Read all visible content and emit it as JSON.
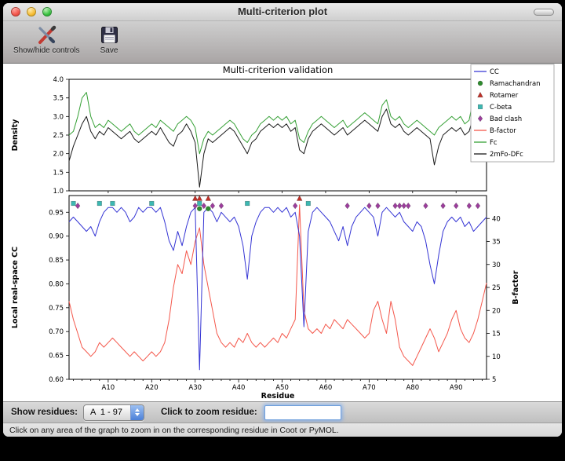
{
  "window": {
    "title": "Multi-criterion plot"
  },
  "toolbar": {
    "buttons": [
      {
        "label": "Show/hide controls"
      },
      {
        "label": "Save"
      }
    ]
  },
  "controls": {
    "show_residues_label": "Show residues:",
    "chain_range": "A  1 - 97",
    "zoom_label": "Click to zoom residue:",
    "zoom_value": ""
  },
  "statusbar": {
    "text": "Click on any area of the graph to zoom in on the corresponding residue in Coot or PyMOL."
  },
  "chart_data": {
    "type": "line",
    "title": "Multi-criterion validation",
    "x_label": "Residue",
    "residue_count": 97,
    "x_tick_residues": [
      10,
      20,
      30,
      40,
      50,
      60,
      70,
      80,
      90
    ],
    "x_tick_labels": [
      "A10",
      "A20",
      "A30",
      "A40",
      "A50",
      "A60",
      "A70",
      "A80",
      "A90"
    ],
    "top_plot": {
      "y_label": "Density",
      "ylim": [
        1.0,
        4.0
      ],
      "y_ticks": [
        1.0,
        1.5,
        2.0,
        2.5,
        3.0,
        3.5,
        4.0
      ],
      "series": [
        {
          "name": "2mFo-DFc",
          "color": "#1a1a1a",
          "values": [
            1.8,
            2.2,
            2.5,
            2.8,
            3.0,
            2.6,
            2.4,
            2.6,
            2.5,
            2.7,
            2.6,
            2.5,
            2.4,
            2.5,
            2.6,
            2.4,
            2.3,
            2.4,
            2.5,
            2.6,
            2.5,
            2.7,
            2.5,
            2.3,
            2.2,
            2.5,
            2.6,
            2.8,
            2.6,
            2.3,
            1.1,
            2.0,
            2.4,
            2.3,
            2.4,
            2.5,
            2.6,
            2.7,
            2.6,
            2.4,
            2.2,
            2.0,
            2.3,
            2.4,
            2.6,
            2.7,
            2.8,
            2.7,
            2.8,
            2.7,
            2.8,
            2.6,
            2.7,
            2.1,
            2.0,
            2.4,
            2.6,
            2.7,
            2.8,
            2.7,
            2.6,
            2.5,
            2.6,
            2.7,
            2.5,
            2.6,
            2.7,
            2.8,
            2.9,
            2.8,
            2.7,
            2.6,
            3.0,
            3.2,
            2.8,
            2.7,
            2.8,
            2.6,
            2.5,
            2.6,
            2.7,
            2.6,
            2.5,
            2.4,
            1.7,
            2.2,
            2.5,
            2.6,
            2.7,
            2.6,
            2.7,
            2.5,
            2.6,
            3.0,
            2.6,
            2.7,
            2.6
          ]
        },
        {
          "name": "Fc",
          "color": "#35a035",
          "values": [
            2.5,
            2.6,
            3.0,
            3.5,
            3.65,
            3.0,
            2.7,
            2.8,
            2.7,
            2.9,
            2.8,
            2.7,
            2.6,
            2.7,
            2.8,
            2.6,
            2.5,
            2.6,
            2.7,
            2.8,
            2.7,
            2.9,
            2.8,
            2.7,
            2.6,
            2.8,
            2.9,
            3.0,
            2.9,
            2.7,
            2.0,
            2.4,
            2.6,
            2.5,
            2.6,
            2.7,
            2.8,
            2.9,
            2.8,
            2.6,
            2.4,
            2.3,
            2.5,
            2.6,
            2.8,
            2.9,
            3.0,
            2.9,
            3.0,
            2.9,
            3.0,
            2.8,
            2.9,
            2.4,
            2.3,
            2.6,
            2.8,
            2.9,
            3.0,
            2.9,
            2.8,
            2.7,
            2.8,
            2.9,
            2.7,
            2.8,
            2.9,
            3.0,
            3.1,
            3.0,
            2.9,
            2.8,
            3.3,
            3.45,
            3.0,
            2.9,
            3.0,
            2.8,
            2.7,
            2.8,
            2.9,
            2.8,
            2.7,
            2.6,
            2.5,
            2.7,
            2.8,
            2.9,
            3.0,
            2.9,
            3.0,
            2.8,
            2.9,
            3.5,
            3.0,
            3.2,
            3.3
          ]
        }
      ]
    },
    "bottom_plot": {
      "y_label": "Local real-space CC",
      "ylim": [
        0.6,
        0.985
      ],
      "y_ticks": [
        0.6,
        0.65,
        0.7,
        0.75,
        0.8,
        0.85,
        0.9,
        0.95
      ],
      "y2_label": "B-factor",
      "y2lim": [
        5,
        45
      ],
      "y2_ticks": [
        5,
        10,
        15,
        20,
        25,
        30,
        35,
        40
      ],
      "series": [
        {
          "name": "B-factor",
          "axis": "right",
          "color": "#f4574b",
          "values": [
            22,
            18,
            15,
            12,
            11,
            10,
            11,
            13,
            12,
            13,
            14,
            13,
            12,
            11,
            10,
            11,
            10,
            9,
            10,
            11,
            10,
            11,
            13,
            18,
            25,
            30,
            28,
            33,
            30,
            35,
            38,
            30,
            25,
            20,
            15,
            13,
            12,
            13,
            12,
            14,
            13,
            15,
            13,
            12,
            13,
            12,
            13,
            14,
            13,
            15,
            14,
            16,
            18,
            43,
            20,
            16,
            15,
            16,
            15,
            17,
            16,
            18,
            17,
            16,
            18,
            17,
            16,
            15,
            14,
            15,
            20,
            22,
            18,
            15,
            22,
            18,
            12,
            10,
            9,
            8,
            10,
            12,
            14,
            16,
            14,
            11,
            13,
            15,
            18,
            20,
            16,
            14,
            13,
            15,
            18,
            22,
            26
          ]
        },
        {
          "name": "CC",
          "axis": "left",
          "color": "#3434d4",
          "values": [
            0.93,
            0.94,
            0.93,
            0.92,
            0.91,
            0.92,
            0.9,
            0.93,
            0.95,
            0.96,
            0.96,
            0.95,
            0.96,
            0.95,
            0.93,
            0.94,
            0.96,
            0.95,
            0.96,
            0.96,
            0.95,
            0.96,
            0.93,
            0.89,
            0.87,
            0.91,
            0.88,
            0.92,
            0.95,
            0.96,
            0.62,
            0.95,
            0.96,
            0.95,
            0.93,
            0.95,
            0.94,
            0.93,
            0.94,
            0.92,
            0.88,
            0.81,
            0.9,
            0.93,
            0.95,
            0.96,
            0.96,
            0.95,
            0.96,
            0.95,
            0.96,
            0.94,
            0.95,
            0.9,
            0.71,
            0.91,
            0.95,
            0.96,
            0.95,
            0.94,
            0.93,
            0.91,
            0.89,
            0.92,
            0.88,
            0.92,
            0.94,
            0.95,
            0.96,
            0.95,
            0.94,
            0.9,
            0.95,
            0.96,
            0.95,
            0.94,
            0.95,
            0.93,
            0.92,
            0.91,
            0.93,
            0.92,
            0.89,
            0.84,
            0.8,
            0.86,
            0.91,
            0.93,
            0.94,
            0.93,
            0.94,
            0.92,
            0.93,
            0.91,
            0.92,
            0.93,
            0.94
          ]
        }
      ],
      "markers": [
        {
          "name": "Rotamer",
          "shape": "triangle",
          "color": "#c03028",
          "residues": [
            30,
            31,
            33,
            54
          ]
        },
        {
          "name": "C-beta",
          "shape": "square",
          "color": "#3cb8b2",
          "residues": [
            2,
            8,
            11,
            20,
            31,
            42,
            56
          ]
        },
        {
          "name": "Ramachandran",
          "shape": "circle",
          "color": "#2e8b2e",
          "residues": [
            31,
            33
          ]
        },
        {
          "name": "Bad clash",
          "shape": "diamond",
          "color": "#9c3d9c",
          "residues": [
            3,
            30,
            32,
            34,
            36,
            53,
            65,
            70,
            72,
            76,
            77,
            78,
            79,
            83,
            87,
            90,
            93,
            95
          ]
        }
      ]
    },
    "legend": {
      "entries": [
        {
          "label": "CC",
          "swatch": "line",
          "color": "#3434d4"
        },
        {
          "label": "Ramachandran",
          "swatch": "circle",
          "color": "#2e8b2e"
        },
        {
          "label": "Rotamer",
          "swatch": "triangle",
          "color": "#c03028"
        },
        {
          "label": "C-beta",
          "swatch": "square",
          "color": "#3cb8b2"
        },
        {
          "label": "Bad clash",
          "swatch": "diamond",
          "color": "#9c3d9c"
        },
        {
          "label": "B-factor",
          "swatch": "line",
          "color": "#f4574b"
        },
        {
          "label": "Fc",
          "swatch": "line",
          "color": "#35a035"
        },
        {
          "label": "2mFo-DFc",
          "swatch": "line",
          "color": "#1a1a1a"
        }
      ]
    }
  }
}
